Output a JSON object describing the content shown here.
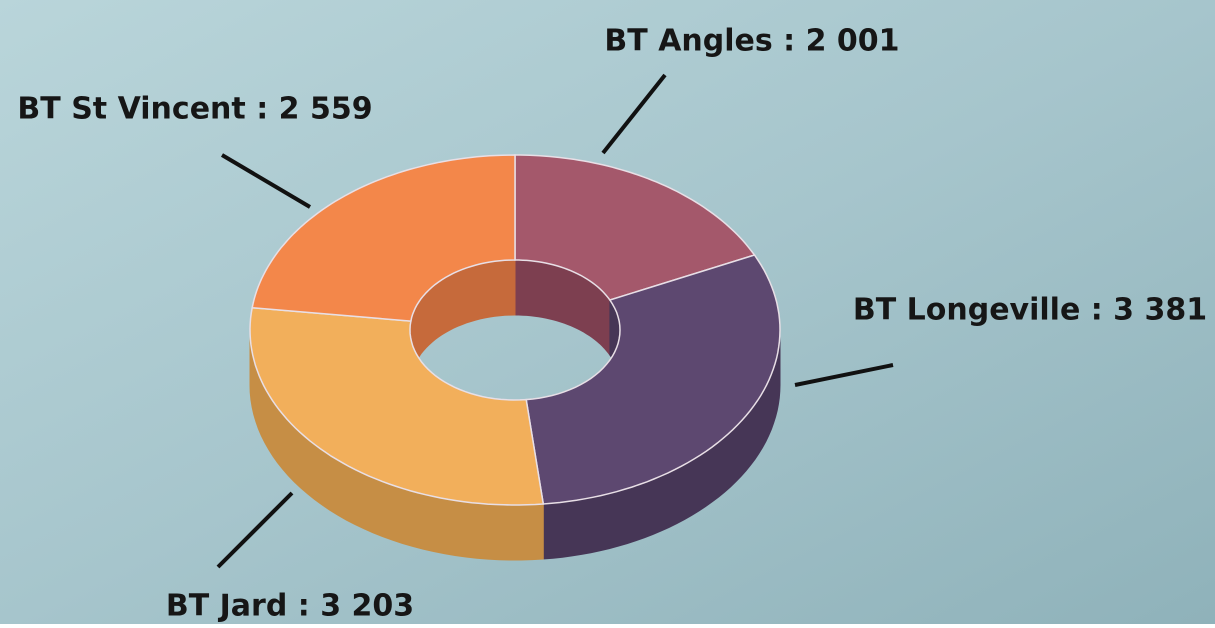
{
  "chart_data": {
    "type": "pie",
    "values": [
      2001,
      3381,
      3203,
      2559
    ],
    "value_labels": [
      "BT Angles : 2 001",
      "BT Longeville : 3 381",
      "BT Jard : 3 203",
      "BT St Vincent : 2 559"
    ],
    "colors": [
      "#a4586b",
      "#5d4870",
      "#f2af5b",
      "#f3874a"
    ],
    "side_colors": [
      "#7d3f50",
      "#463656",
      "#c68e45",
      "#c66a3b"
    ]
  }
}
